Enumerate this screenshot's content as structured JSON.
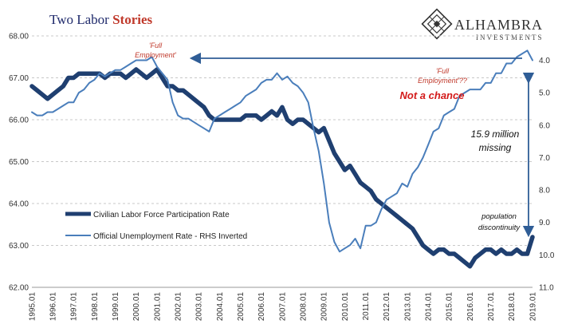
{
  "logo": {
    "name": "ALHAMBRA",
    "sub": "INVESTMENTS"
  },
  "chart_data": {
    "type": "line",
    "title_part1": "Two Labor ",
    "title_part2": "Stories",
    "x_ticks": [
      "1995.01",
      "1996.01",
      "1997.01",
      "1998.01",
      "1999.01",
      "2000.01",
      "2001.01",
      "2002.01",
      "2003.01",
      "2004.01",
      "2005.01",
      "2006.01",
      "2007.01",
      "2008.01",
      "2009.01",
      "2010.01",
      "2011.01",
      "2012.01",
      "2013.01",
      "2014.01",
      "2015.01",
      "2016.01",
      "2017.01",
      "2018.01",
      "2019.01"
    ],
    "y_left_ticks": [
      "68.00",
      "67.00",
      "66.00",
      "65.00",
      "64.00",
      "63.00",
      "62.00"
    ],
    "y_left_range": [
      62,
      68
    ],
    "y_right_ticks": [
      "4.0",
      "5.0",
      "6.0",
      "7.0",
      "8.0",
      "9.0",
      "10.0",
      "11.0"
    ],
    "y_right_range": [
      3.25,
      11.0
    ],
    "y_right_inverted": true,
    "x_range": [
      1995.0,
      2019.0
    ],
    "grid": "horizontal dashed",
    "legend_position": "lower-left",
    "series": [
      {
        "name": "Civilian Labor Force Participation Rate",
        "axis": "left",
        "color": "#1f3f70",
        "x": [
          1995.0,
          1995.25,
          1995.5,
          1995.75,
          1996.0,
          1996.25,
          1996.5,
          1996.75,
          1997.0,
          1997.25,
          1997.5,
          1997.75,
          1998.0,
          1998.25,
          1998.5,
          1998.75,
          1999.0,
          1999.25,
          1999.5,
          1999.75,
          2000.0,
          2000.25,
          2000.5,
          2000.75,
          2001.0,
          2001.25,
          2001.5,
          2001.75,
          2002.0,
          2002.25,
          2002.5,
          2002.75,
          2003.0,
          2003.25,
          2003.5,
          2003.75,
          2004.0,
          2004.25,
          2004.5,
          2004.75,
          2005.0,
          2005.25,
          2005.5,
          2005.75,
          2006.0,
          2006.25,
          2006.5,
          2006.75,
          2007.0,
          2007.25,
          2007.5,
          2007.75,
          2008.0,
          2008.25,
          2008.5,
          2008.75,
          2009.0,
          2009.25,
          2009.5,
          2009.75,
          2010.0,
          2010.25,
          2010.5,
          2010.75,
          2011.0,
          2011.25,
          2011.5,
          2011.75,
          2012.0,
          2012.25,
          2012.5,
          2012.75,
          2013.0,
          2013.25,
          2013.5,
          2013.75,
          2014.0,
          2014.25,
          2014.5,
          2014.75,
          2015.0,
          2015.25,
          2015.5,
          2015.75,
          2016.0,
          2016.25,
          2016.5,
          2016.75,
          2017.0,
          2017.25,
          2017.5,
          2017.75,
          2018.0,
          2018.25,
          2018.5,
          2018.75,
          2019.0
        ],
        "values": [
          66.8,
          66.7,
          66.6,
          66.5,
          66.6,
          66.7,
          66.8,
          67.0,
          67.0,
          67.1,
          67.1,
          67.1,
          67.1,
          67.1,
          67.0,
          67.1,
          67.1,
          67.1,
          67.0,
          67.1,
          67.2,
          67.1,
          67.0,
          67.1,
          67.2,
          67.0,
          66.8,
          66.8,
          66.7,
          66.7,
          66.6,
          66.5,
          66.4,
          66.3,
          66.1,
          66.0,
          66.0,
          66.0,
          66.0,
          66.0,
          66.0,
          66.1,
          66.1,
          66.1,
          66.0,
          66.1,
          66.2,
          66.1,
          66.3,
          66.0,
          65.9,
          66.0,
          66.0,
          65.9,
          65.8,
          65.7,
          65.8,
          65.5,
          65.2,
          65.0,
          64.8,
          64.9,
          64.7,
          64.5,
          64.4,
          64.3,
          64.1,
          64.0,
          63.9,
          63.8,
          63.7,
          63.6,
          63.5,
          63.4,
          63.2,
          63.0,
          62.9,
          62.8,
          62.9,
          62.9,
          62.8,
          62.8,
          62.7,
          62.6,
          62.5,
          62.7,
          62.8,
          62.9,
          62.9,
          62.8,
          62.9,
          62.8,
          62.8,
          62.9,
          62.8,
          62.8,
          63.2
        ]
      },
      {
        "name": "Official Unemployment Rate - RHS Inverted",
        "axis": "right",
        "color": "#4a7ebb",
        "x": [
          1995.0,
          1995.25,
          1995.5,
          1995.75,
          1996.0,
          1996.25,
          1996.5,
          1996.75,
          1997.0,
          1997.25,
          1997.5,
          1997.75,
          1998.0,
          1998.25,
          1998.5,
          1998.75,
          1999.0,
          1999.25,
          1999.5,
          1999.75,
          2000.0,
          2000.25,
          2000.5,
          2000.75,
          2001.0,
          2001.25,
          2001.5,
          2001.75,
          2002.0,
          2002.25,
          2002.5,
          2002.75,
          2003.0,
          2003.25,
          2003.5,
          2003.75,
          2004.0,
          2004.25,
          2004.5,
          2004.75,
          2005.0,
          2005.25,
          2005.5,
          2005.75,
          2006.0,
          2006.25,
          2006.5,
          2006.75,
          2007.0,
          2007.25,
          2007.5,
          2007.75,
          2008.0,
          2008.25,
          2008.5,
          2008.75,
          2009.0,
          2009.25,
          2009.5,
          2009.75,
          2010.0,
          2010.25,
          2010.5,
          2010.75,
          2011.0,
          2011.25,
          2011.5,
          2011.75,
          2012.0,
          2012.25,
          2012.5,
          2012.75,
          2013.0,
          2013.25,
          2013.5,
          2013.75,
          2014.0,
          2014.25,
          2014.5,
          2014.75,
          2015.0,
          2015.25,
          2015.5,
          2015.75,
          2016.0,
          2016.25,
          2016.5,
          2016.75,
          2017.0,
          2017.25,
          2017.5,
          2017.75,
          2018.0,
          2018.25,
          2018.5,
          2018.75,
          2019.0
        ],
        "values": [
          5.6,
          5.7,
          5.7,
          5.6,
          5.6,
          5.5,
          5.4,
          5.3,
          5.3,
          5.0,
          4.9,
          4.7,
          4.6,
          4.4,
          4.5,
          4.4,
          4.3,
          4.3,
          4.2,
          4.1,
          4.0,
          4.0,
          4.0,
          3.9,
          4.2,
          4.4,
          4.6,
          5.3,
          5.7,
          5.8,
          5.8,
          5.9,
          6.0,
          6.1,
          6.2,
          5.8,
          5.7,
          5.6,
          5.5,
          5.4,
          5.3,
          5.1,
          5.0,
          4.9,
          4.7,
          4.6,
          4.6,
          4.4,
          4.6,
          4.5,
          4.7,
          4.8,
          5.0,
          5.3,
          6.1,
          6.8,
          7.8,
          9.0,
          9.6,
          9.9,
          9.8,
          9.7,
          9.5,
          9.8,
          9.1,
          9.1,
          9.0,
          8.6,
          8.3,
          8.2,
          8.1,
          7.8,
          7.9,
          7.5,
          7.3,
          7.0,
          6.6,
          6.2,
          6.1,
          5.7,
          5.6,
          5.5,
          5.1,
          5.0,
          4.9,
          4.9,
          4.9,
          4.7,
          4.7,
          4.4,
          4.4,
          4.1,
          4.1,
          3.9,
          3.8,
          3.7,
          4.0
        ]
      }
    ],
    "annotations": {
      "full_emp_left_1": "'Full",
      "full_emp_left_2": "Employment'",
      "full_emp_right_1": "'Full",
      "full_emp_right_2": "Employment'??",
      "not_a_chance": "Not a chance",
      "missing_1": "15.9 million",
      "missing_2": "missing",
      "discontinuity_1": "population",
      "discontinuity_2": "discontinuity"
    }
  }
}
